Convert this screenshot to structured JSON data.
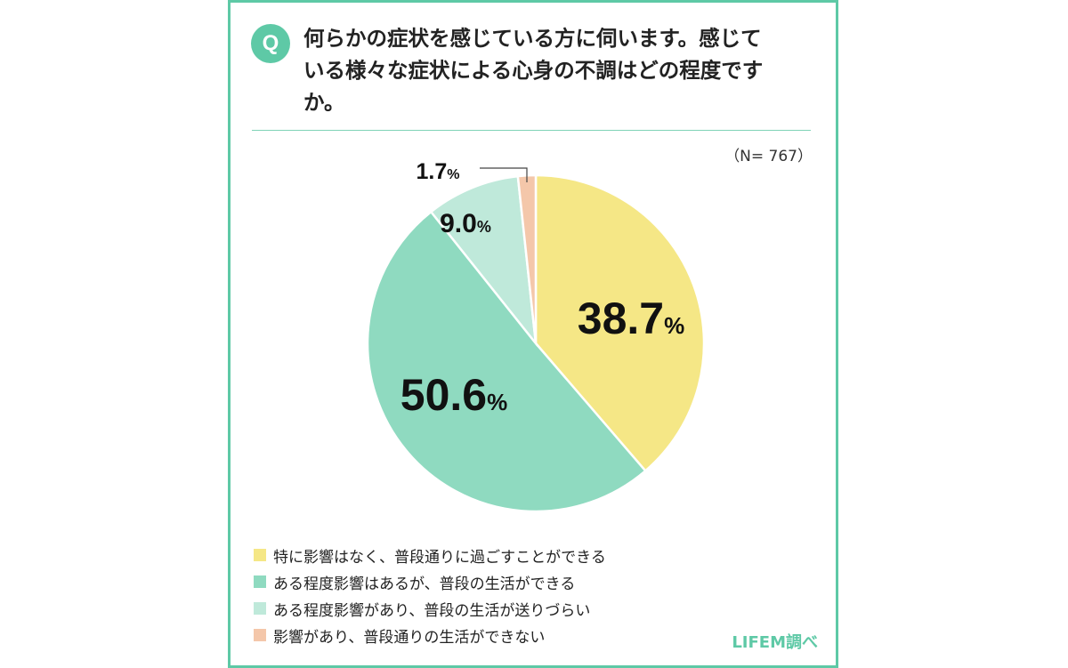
{
  "question": {
    "badge": "Q",
    "lines": [
      "何らかの症状を感じている方に伺います。感じて",
      "いる様々な症状による心身の不調はどの程度です",
      "か。"
    ]
  },
  "sample": "（N= 767）",
  "credit": "LIFEM調べ",
  "chart_data": {
    "type": "pie",
    "categories": [
      "特に影響はなく、普段通りに過ごすことができる",
      "ある程度影響はあるが、普段の生活ができる",
      "ある程度影響があり、普段の生活が送りづらい",
      "影響があり、普段通りの生活ができない"
    ],
    "values": [
      38.7,
      50.6,
      9.0,
      1.7
    ],
    "labels": [
      "38.7",
      "50.6",
      "9.0",
      "1.7"
    ],
    "unit": "%",
    "colors": [
      "#f5e786",
      "#8fdac0",
      "#bfe9da",
      "#f4c7aa"
    ],
    "start": "12 o'clock, clockwise",
    "legend": "bottom-left"
  }
}
